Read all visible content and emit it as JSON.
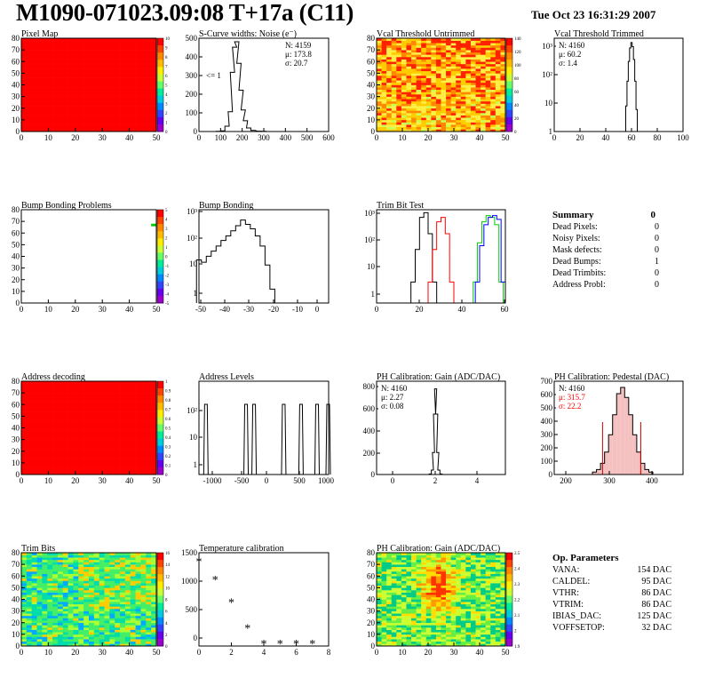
{
  "header": {
    "title": "M1090-071023.09:08 T+17a (C11)",
    "datetime": "Tue Oct 23 16:31:29 2007"
  },
  "colors": {
    "red": "#ff0000",
    "black": "#000000",
    "green": "#00cc00",
    "blue": "#0000ff"
  },
  "panels": {
    "pixel_map": {
      "title": "Pixel Map",
      "xticks": [
        "0",
        "10",
        "20",
        "30",
        "40",
        "50"
      ],
      "yticks": [
        "0",
        "10",
        "20",
        "30",
        "40",
        "50",
        "60",
        "70",
        "80"
      ],
      "zticks": [
        "10",
        "9",
        "8",
        "7",
        "6",
        "5",
        "4",
        "3",
        "2",
        "1",
        "0"
      ]
    },
    "scurve": {
      "title": "S-Curve widths: Noise (e⁻)",
      "xticks": [
        "0",
        "100",
        "200",
        "300",
        "400",
        "500",
        "600"
      ],
      "yticks": [
        "0",
        "100",
        "200",
        "300",
        "400",
        "500"
      ],
      "stats": [
        "N: 4159",
        "μ: 173.8",
        "σ: 20.7"
      ],
      "annotation": "<= 1"
    },
    "vcal_untrimmed": {
      "title": "Vcal Threshold Untrimmed",
      "xticks": [
        "0",
        "10",
        "20",
        "30",
        "40",
        "50"
      ],
      "yticks": [
        "0",
        "10",
        "20",
        "30",
        "40",
        "50",
        "60",
        "70",
        "80"
      ],
      "zticks": [
        "140",
        "120",
        "100",
        "80",
        "60",
        "40",
        "20",
        "0"
      ]
    },
    "vcal_trimmed": {
      "title": "Vcal Threshold Trimmed",
      "xticks": [
        "0",
        "20",
        "40",
        "60",
        "80",
        "100"
      ],
      "yticks": [
        "1",
        "10",
        "10²",
        "10³"
      ],
      "stats": [
        "N: 4160",
        "μ: 60.2",
        "σ:  1.4"
      ]
    },
    "bump_problems": {
      "title": "Bump Bonding Problems",
      "xticks": [
        "0",
        "10",
        "20",
        "30",
        "40",
        "50"
      ],
      "yticks": [
        "0",
        "10",
        "20",
        "30",
        "40",
        "50",
        "60",
        "70",
        "80"
      ],
      "zticks": [
        "5",
        "4",
        "3",
        "2",
        "1",
        "0",
        "-1",
        "-2",
        "-3",
        "-4",
        "-5"
      ]
    },
    "bump_bonding": {
      "title": "Bump Bonding",
      "xticks": [
        "-50",
        "-40",
        "-30",
        "-20",
        "-10",
        "0"
      ],
      "yticks": [
        "1",
        "10",
        "10²",
        "10³"
      ]
    },
    "trim_bit_test": {
      "title": "Trim Bit Test",
      "xticks": [
        "0",
        "20",
        "40",
        "60"
      ],
      "yticks": [
        "1",
        "10",
        "10²",
        "10³"
      ]
    },
    "address_decoding": {
      "title": "Address decoding",
      "xticks": [
        "0",
        "10",
        "20",
        "30",
        "40",
        "50"
      ],
      "yticks": [
        "0",
        "10",
        "20",
        "30",
        "40",
        "50",
        "60",
        "70",
        "80"
      ],
      "zticks": [
        "1",
        "0.9",
        "0.8",
        "0.7",
        "0.6",
        "0.5",
        "0.4",
        "0.3",
        "0.2",
        "0.1",
        "0"
      ]
    },
    "address_levels": {
      "title": "Address Levels",
      "xticks": [
        "-1000",
        "-500",
        "0",
        "500",
        "1000"
      ],
      "yticks": [
        "1",
        "10",
        "10²"
      ]
    },
    "ph_gain_hist": {
      "title": "PH Calibration: Gain (ADC/DAC)",
      "xticks": [
        "0",
        "2",
        "4"
      ],
      "yticks": [
        "0",
        "200",
        "400",
        "600",
        "800"
      ],
      "stats": [
        "N: 4160",
        "μ: 2.27",
        "σ: 0.08"
      ]
    },
    "ph_pedestal": {
      "title": "PH Calibration: Pedestal (DAC)",
      "xticks": [
        "200",
        "300",
        "400"
      ],
      "yticks": [
        "0",
        "100",
        "200",
        "300",
        "400",
        "500",
        "600",
        "700"
      ],
      "stats": [
        "N: 4160",
        "μ: 315.7",
        "σ: 22.2"
      ]
    },
    "trim_bits": {
      "title": "Trim Bits",
      "xticks": [
        "0",
        "10",
        "20",
        "30",
        "40",
        "50"
      ],
      "yticks": [
        "0",
        "10",
        "20",
        "30",
        "40",
        "50",
        "60",
        "70",
        "80"
      ],
      "zticks": [
        "16",
        "14",
        "12",
        "10",
        "8",
        "6",
        "4",
        "2",
        "0"
      ]
    },
    "temperature": {
      "title": "Temperature calibration",
      "xticks": [
        "0",
        "2",
        "4",
        "6",
        "8"
      ],
      "yticks": [
        "0",
        "500",
        "1000",
        "1500"
      ]
    },
    "ph_gain_map": {
      "title": "PH Calibration: Gain (ADC/DAC)",
      "xticks": [
        "0",
        "10",
        "20",
        "30",
        "40",
        "50"
      ],
      "yticks": [
        "0",
        "10",
        "20",
        "30",
        "40",
        "50",
        "60",
        "70",
        "80"
      ],
      "zticks": [
        "2.5",
        "2.4",
        "2.3",
        "2.2",
        "2.1",
        "2",
        "1.9"
      ]
    }
  },
  "summary": {
    "title": "Summary",
    "total": "0",
    "rows": [
      {
        "label": "Dead Pixels:",
        "value": "0"
      },
      {
        "label": "Noisy Pixels:",
        "value": "0"
      },
      {
        "label": "Mask defects:",
        "value": "0"
      },
      {
        "label": "Dead Bumps:",
        "value": "1"
      },
      {
        "label": "Dead Trimbits:",
        "value": "0"
      },
      {
        "label": "Address Probl:",
        "value": "0"
      }
    ]
  },
  "op_params": {
    "title": "Op. Parameters",
    "rows": [
      {
        "label": "VANA:",
        "value": "154 DAC"
      },
      {
        "label": "CALDEL:",
        "value": "95 DAC"
      },
      {
        "label": "VTHR:",
        "value": "86 DAC"
      },
      {
        "label": "VTRIM:",
        "value": "86 DAC"
      },
      {
        "label": "IBIAS_DAC:",
        "value": "125 DAC"
      },
      {
        "label": "VOFFSETOP:",
        "value": "32 DAC"
      }
    ]
  },
  "chart_data": [
    {
      "type": "heatmap",
      "title": "Pixel Map",
      "xlim": [
        0,
        52
      ],
      "ylim": [
        0,
        80
      ],
      "zlim": [
        0,
        10
      ],
      "uniform_value": 10
    },
    {
      "type": "bar",
      "title": "S-Curve widths: Noise (e⁻)",
      "x": [
        90,
        110,
        130,
        145,
        155,
        165,
        175,
        185,
        195,
        205,
        215,
        230,
        250,
        280,
        300
      ],
      "values": [
        1,
        4,
        30,
        110,
        330,
        470,
        500,
        380,
        230,
        120,
        60,
        20,
        6,
        2,
        1
      ],
      "xlim": [
        0,
        600
      ],
      "ylim": [
        0,
        520
      ]
    },
    {
      "type": "heatmap",
      "title": "Vcal Threshold Untrimmed",
      "xlim": [
        0,
        52
      ],
      "ylim": [
        0,
        80
      ],
      "zlim": [
        0,
        140
      ]
    },
    {
      "type": "bar",
      "title": "Vcal Threshold Trimmed",
      "x": [
        55,
        56,
        57,
        58,
        59,
        60,
        61,
        62,
        63,
        64,
        65
      ],
      "values": [
        1,
        8,
        60,
        300,
        900,
        1400,
        1000,
        350,
        60,
        6,
        1
      ],
      "xlim": [
        0,
        100
      ],
      "yscale": "log"
    },
    {
      "type": "heatmap",
      "title": "Bump Bonding Problems",
      "xlim": [
        0,
        52
      ],
      "ylim": [
        0,
        80
      ],
      "zlim": [
        -5,
        5
      ],
      "points": [
        {
          "x": 50,
          "y": 66,
          "z": 1
        }
      ]
    },
    {
      "type": "bar",
      "title": "Bump Bonding",
      "x": [
        -50,
        -48,
        -46,
        -44,
        -42,
        -40,
        -38,
        -36,
        -34,
        -32,
        -30,
        -28,
        -26,
        -24,
        -22,
        -20,
        -18,
        -2
      ],
      "values": [
        30,
        25,
        40,
        60,
        90,
        140,
        200,
        300,
        450,
        700,
        500,
        350,
        200,
        90,
        20,
        3,
        1,
        1
      ],
      "xlim": [
        -50,
        3
      ],
      "yscale": "log"
    },
    {
      "type": "line",
      "title": "Trim Bit Test",
      "xlim": [
        0,
        60
      ],
      "yscale": "log",
      "series": [
        {
          "color": "#000000",
          "x": [
            17,
            19,
            21,
            23,
            25,
            27
          ],
          "values": [
            5,
            60,
            700,
            1000,
            200,
            5
          ]
        },
        {
          "color": "#ff0000",
          "x": [
            25,
            27,
            29,
            31,
            33,
            35
          ],
          "values": [
            5,
            60,
            500,
            700,
            200,
            5
          ]
        },
        {
          "color": "#00cc00",
          "x": [
            46,
            48,
            50,
            52,
            54,
            56,
            58
          ],
          "values": [
            5,
            100,
            500,
            800,
            700,
            400,
            5
          ]
        },
        {
          "color": "#0000ff",
          "x": [
            47,
            49,
            51,
            53,
            55,
            57,
            59
          ],
          "values": [
            5,
            80,
            400,
            700,
            800,
            600,
            5
          ]
        }
      ]
    },
    {
      "type": "heatmap",
      "title": "Address decoding",
      "xlim": [
        0,
        52
      ],
      "ylim": [
        0,
        80
      ],
      "zlim": [
        0,
        1
      ],
      "uniform_value": 1
    },
    {
      "type": "bar",
      "title": "Address Levels",
      "x": [
        -980,
        -330,
        -200,
        280,
        560,
        820,
        1000
      ],
      "values": [
        330,
        330,
        330,
        330,
        330,
        330,
        330
      ],
      "xlim": [
        -1100,
        1000
      ],
      "yscale": "log"
    },
    {
      "type": "bar",
      "title": "PH Calibration: Gain (ADC/DAC)",
      "x": [
        2.0,
        2.1,
        2.15,
        2.2,
        2.25,
        2.3,
        2.35,
        2.4,
        2.5
      ],
      "values": [
        5,
        40,
        200,
        550,
        780,
        550,
        200,
        40,
        5
      ],
      "xlim": [
        -0.5,
        5.5
      ],
      "ylim": [
        0,
        850
      ]
    },
    {
      "type": "bar",
      "title": "PH Calibration: Pedestal (DAC)",
      "x": [
        250,
        260,
        270,
        280,
        290,
        300,
        310,
        320,
        330,
        340,
        350,
        360,
        370,
        380,
        390
      ],
      "values": [
        20,
        40,
        90,
        180,
        320,
        480,
        650,
        700,
        620,
        480,
        320,
        180,
        90,
        40,
        20
      ],
      "xlim": [
        150,
        470
      ],
      "ylim": [
        0,
        750
      ]
    },
    {
      "type": "heatmap",
      "title": "Trim Bits",
      "xlim": [
        0,
        52
      ],
      "ylim": [
        0,
        80
      ],
      "zlim": [
        0,
        16
      ]
    },
    {
      "type": "scatter",
      "title": "Temperature calibration",
      "x": [
        0,
        1,
        2,
        3,
        4,
        5,
        6,
        7
      ],
      "values": [
        1400,
        1080,
        680,
        220,
        -50,
        -50,
        -50,
        -50
      ],
      "xlim": [
        0,
        8
      ],
      "ylim": [
        -100,
        1550
      ]
    },
    {
      "type": "heatmap",
      "title": "PH Calibration: Gain (ADC/DAC)",
      "xlim": [
        0,
        52
      ],
      "ylim": [
        0,
        80
      ],
      "zlim": [
        1.9,
        2.5
      ]
    }
  ]
}
